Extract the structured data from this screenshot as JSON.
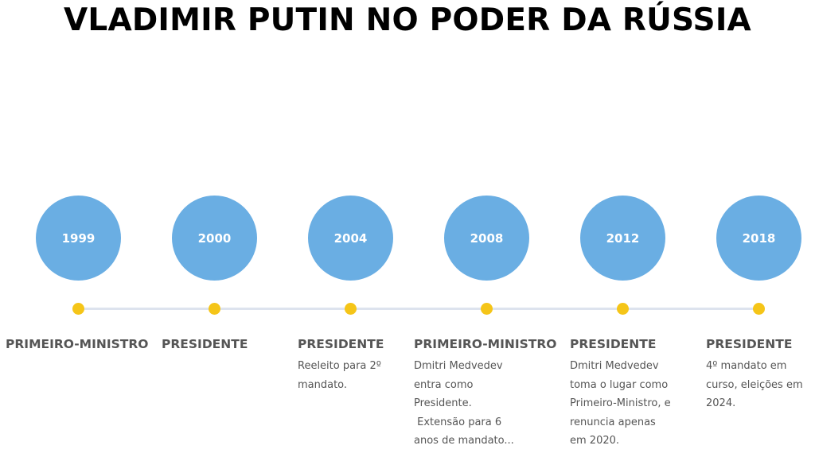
{
  "title": "VLADIMIR PUTIN NO PODER DA RÚSSIA",
  "colors": {
    "circle": "#6aaee3",
    "dot": "#f5c518",
    "line": "#dde3ee",
    "text": "#555555"
  },
  "events": [
    {
      "year": "1999",
      "heading": "PRIMEIRO-MINISTRO",
      "lines": []
    },
    {
      "year": "2000",
      "heading": "PRESIDENTE",
      "lines": []
    },
    {
      "year": "2004",
      "heading": "PRESIDENTE",
      "lines": [
        "Reeleito para 2º",
        "mandato."
      ]
    },
    {
      "year": "2008",
      "heading": "PRIMEIRO-MINISTRO",
      "lines": [
        "Dmitri Medvedev",
        "entra como",
        "Presidente.",
        " Extensão para 6",
        "anos de mandato..."
      ]
    },
    {
      "year": "2012",
      "heading": "PRESIDENTE",
      "lines": [
        "Dmitri Medvedev",
        "toma o lugar como",
        "Primeiro-Ministro, e",
        "renuncia apenas",
        "em 2020."
      ]
    },
    {
      "year": "2018",
      "heading": "PRESIDENTE",
      "lines": [
        "4º mandato em",
        "curso, eleições em",
        "2024."
      ]
    }
  ]
}
